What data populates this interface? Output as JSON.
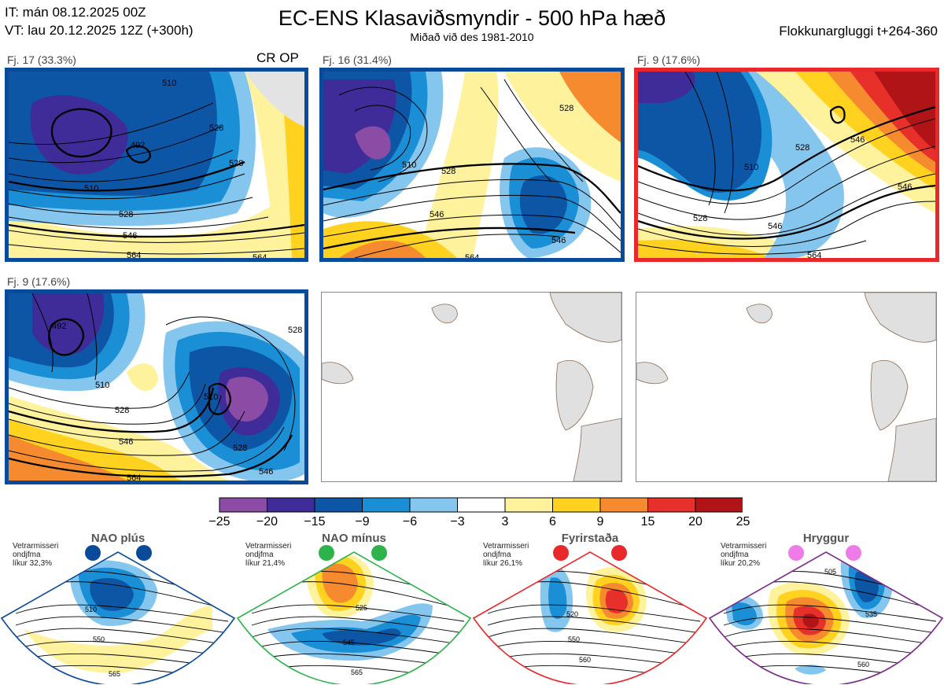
{
  "header": {
    "it_line": "IT: mán 08.12.2025 00Z",
    "vt_line": "VT: lau 20.12.2025 12Z  (+300h)",
    "title": "EC-ENS Klasaviðsmyndir - 500 hPa hæð",
    "subtitle": "Miðað við des 1981-2010",
    "window": "Flokkunargluggi t+264-360"
  },
  "panels": [
    {
      "label": "Fj. 17 (33.3%)",
      "frame": "blue",
      "tag": "CR OP",
      "contours": [
        "510",
        "492",
        "528",
        "546",
        "564",
        "510",
        "528",
        "564",
        "528"
      ]
    },
    {
      "label": "Fj. 16 (31.4%)",
      "frame": "blue",
      "contours": [
        "528",
        "546",
        "510",
        "528",
        "546",
        "564"
      ]
    },
    {
      "label": "Fj. 9 (17.6%)",
      "frame": "red",
      "contours": [
        "510",
        "528",
        "546",
        "528",
        "546",
        "546",
        "564"
      ]
    },
    {
      "label": "Fj. 9 (17.6%)",
      "frame": "blue",
      "contours": [
        "492",
        "510",
        "528",
        "546",
        "564",
        "510",
        "528",
        "546",
        "528"
      ]
    }
  ],
  "colorbar": {
    "ticks": [
      "−25",
      "−20",
      "−15",
      "−9",
      "−6",
      "−3",
      "3",
      "6",
      "9",
      "15",
      "20",
      "25"
    ],
    "colors": [
      "#8b4ca6",
      "#3f2c98",
      "#0d56a6",
      "#1b8fd6",
      "#85c6ee",
      "#ffffff",
      "#fff29c",
      "#ffd21f",
      "#f58a2e",
      "#e8302a",
      "#b11417"
    ]
  },
  "regimes": [
    {
      "name": "NAO plús",
      "note": [
        "Vetrarmisseri",
        "ondjfma",
        "líkur 32,3%"
      ],
      "dot_color": "#0a4a9a",
      "frame": "#0a4a9a",
      "contours": [
        "510",
        "550",
        "565"
      ]
    },
    {
      "name": "NAO mínus",
      "note": [
        "Vetrarmisseri",
        "ondjfma",
        "líkur 21,4%"
      ],
      "dot_color": "#2db34a",
      "frame": "#2db34a",
      "contours": [
        "525",
        "545",
        "565"
      ]
    },
    {
      "name": "Fyrirstaða",
      "note": [
        "Vetrarmisseri",
        "ondjfma",
        "líkur 26,1%"
      ],
      "dot_color": "#e8282a",
      "frame": "#e8282a",
      "contours": [
        "520",
        "550",
        "560"
      ]
    },
    {
      "name": "Hryggur",
      "note": [
        "Vetrarmisseri",
        "ondjfma",
        "líkur 20,2%"
      ],
      "dot_color": "#ee7ce8",
      "frame": "#7a2a8a",
      "contours": [
        "505",
        "535",
        "560"
      ]
    }
  ]
}
